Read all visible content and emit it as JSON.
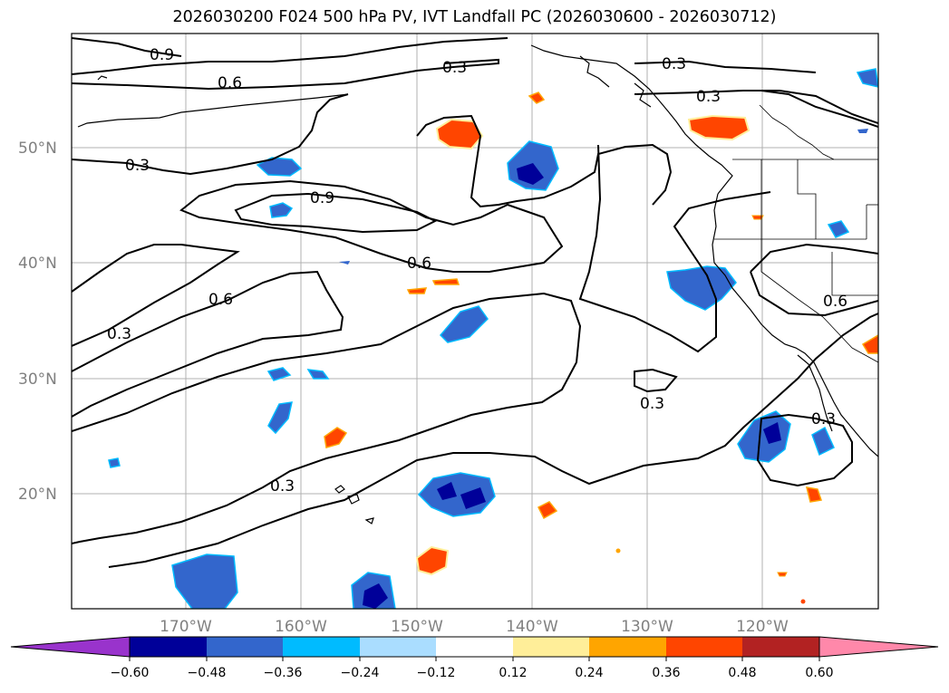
{
  "title": "2026030200 F024 500 hPa PV, IVT Landfall PC (2026030600 - 2026030712)",
  "map": {
    "lat_labels": [
      "50°N",
      "40°N",
      "30°N",
      "20°N"
    ],
    "lon_labels": [
      "170°W",
      "160°W",
      "150°W",
      "140°W",
      "130°W",
      "120°W"
    ],
    "contour_labels": [
      "0.9",
      "0.6",
      "0.3",
      "0.3",
      "0.3",
      "0.3",
      "0.9",
      "0.6",
      "0.6",
      "0.3",
      "0.3",
      "0.6",
      "0.3",
      "0.3"
    ],
    "colors": {
      "negative": [
        "#9933cc",
        "#000099",
        "#3366cc",
        "#00bbff",
        "#aaddff"
      ],
      "positive": [
        "#ffee99",
        "#ffa500",
        "#ff4500",
        "#b22222",
        "#ff88aa"
      ]
    }
  },
  "colorbar": {
    "ticks": [
      "−0.60",
      "−0.48",
      "−0.36",
      "−0.24",
      "−0.12",
      "0.12",
      "0.24",
      "0.36",
      "0.48",
      "0.60"
    ],
    "colors": [
      "#9933cc",
      "#000099",
      "#3366cc",
      "#00bbff",
      "#aaddff",
      "#ffffff",
      "#ffee99",
      "#ffa500",
      "#ff4500",
      "#b22222",
      "#ff88aa"
    ]
  }
}
